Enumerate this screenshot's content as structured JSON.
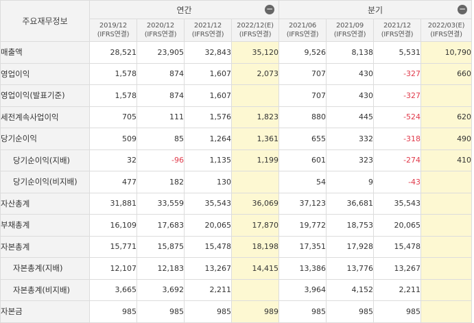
{
  "header": {
    "corner": "주요재무정보",
    "annual_group": "연간",
    "quarter_group": "분기",
    "toggle_symbol": "−",
    "periods": [
      {
        "date": "2019/12",
        "basis": "(IFRS연결)",
        "estimate": false
      },
      {
        "date": "2020/12",
        "basis": "(IFRS연결)",
        "estimate": false
      },
      {
        "date": "2021/12",
        "basis": "(IFRS연결)",
        "estimate": false
      },
      {
        "date": "2022/12(E)",
        "basis": "(IFRS연결)",
        "estimate": true
      },
      {
        "date": "2021/06",
        "basis": "(IFRS연결)",
        "estimate": false
      },
      {
        "date": "2021/09",
        "basis": "(IFRS연결)",
        "estimate": false
      },
      {
        "date": "2021/12",
        "basis": "(IFRS연결)",
        "estimate": false
      },
      {
        "date": "2022/03(E)",
        "basis": "(IFRS연결)",
        "estimate": true
      }
    ]
  },
  "rows": [
    {
      "label": "매출액",
      "sub": false,
      "values": [
        "28,521",
        "23,905",
        "32,843",
        "35,120",
        "9,526",
        "8,138",
        "5,531",
        "10,790"
      ]
    },
    {
      "label": "영업이익",
      "sub": false,
      "values": [
        "1,578",
        "874",
        "1,607",
        "2,073",
        "707",
        "430",
        "-327",
        "660"
      ]
    },
    {
      "label": "영업이익(발표기준)",
      "sub": false,
      "values": [
        "1,578",
        "874",
        "1,607",
        "",
        "707",
        "430",
        "-327",
        ""
      ]
    },
    {
      "label": "세전계속사업이익",
      "sub": false,
      "values": [
        "705",
        "111",
        "1,576",
        "1,823",
        "880",
        "445",
        "-524",
        "620"
      ]
    },
    {
      "label": "당기순이익",
      "sub": false,
      "values": [
        "509",
        "85",
        "1,264",
        "1,361",
        "655",
        "332",
        "-318",
        "490"
      ]
    },
    {
      "label": "당기순이익(지배)",
      "sub": true,
      "values": [
        "32",
        "-96",
        "1,135",
        "1,199",
        "601",
        "323",
        "-274",
        "410"
      ]
    },
    {
      "label": "당기순이익(비지배)",
      "sub": true,
      "values": [
        "477",
        "182",
        "130",
        "",
        "54",
        "9",
        "-43",
        ""
      ]
    },
    {
      "label": "자산총계",
      "sub": false,
      "values": [
        "31,881",
        "33,559",
        "35,543",
        "36,069",
        "37,123",
        "36,681",
        "35,543",
        ""
      ]
    },
    {
      "label": "부채총계",
      "sub": false,
      "values": [
        "16,109",
        "17,683",
        "20,065",
        "17,870",
        "19,772",
        "18,753",
        "20,065",
        ""
      ]
    },
    {
      "label": "자본총계",
      "sub": false,
      "values": [
        "15,771",
        "15,875",
        "15,478",
        "18,198",
        "17,351",
        "17,928",
        "15,478",
        ""
      ]
    },
    {
      "label": "자본총계(지배)",
      "sub": true,
      "values": [
        "12,107",
        "12,183",
        "13,267",
        "14,415",
        "13,386",
        "13,776",
        "13,267",
        ""
      ]
    },
    {
      "label": "자본총계(비지배)",
      "sub": true,
      "values": [
        "3,665",
        "3,692",
        "2,211",
        "",
        "3,964",
        "4,152",
        "2,211",
        ""
      ]
    },
    {
      "label": "자본금",
      "sub": false,
      "values": [
        "985",
        "985",
        "985",
        "989",
        "985",
        "985",
        "985",
        ""
      ]
    }
  ]
}
